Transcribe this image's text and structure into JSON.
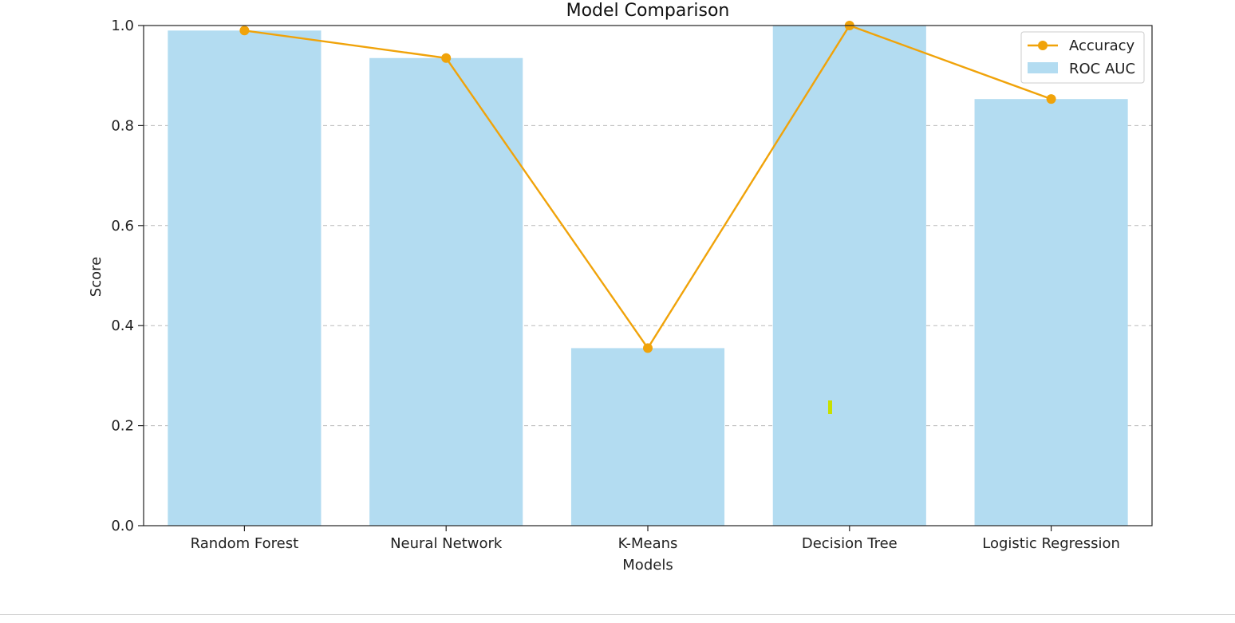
{
  "chart_data": {
    "type": "bar",
    "title": "Model Comparison",
    "xlabel": "Models",
    "ylabel": "Score",
    "ylim": [
      0,
      1.0
    ],
    "yticks": [
      "0.0",
      "0.2",
      "0.4",
      "0.6",
      "0.8",
      "1.0"
    ],
    "grid": "horizontal-dashed",
    "legend_position": "top-right",
    "categories": [
      "Random Forest",
      "Neural Network",
      "K-Means",
      "Decision Tree",
      "Logistic Regression"
    ],
    "series": [
      {
        "name": "Accuracy",
        "kind": "line",
        "color": "#f0a30a",
        "values": [
          0.99,
          0.935,
          0.355,
          1.0,
          0.853
        ]
      },
      {
        "name": "ROC AUC",
        "kind": "bar",
        "color": "#b3dcf1",
        "values": [
          0.99,
          0.935,
          0.355,
          1.0,
          0.853
        ]
      }
    ]
  }
}
